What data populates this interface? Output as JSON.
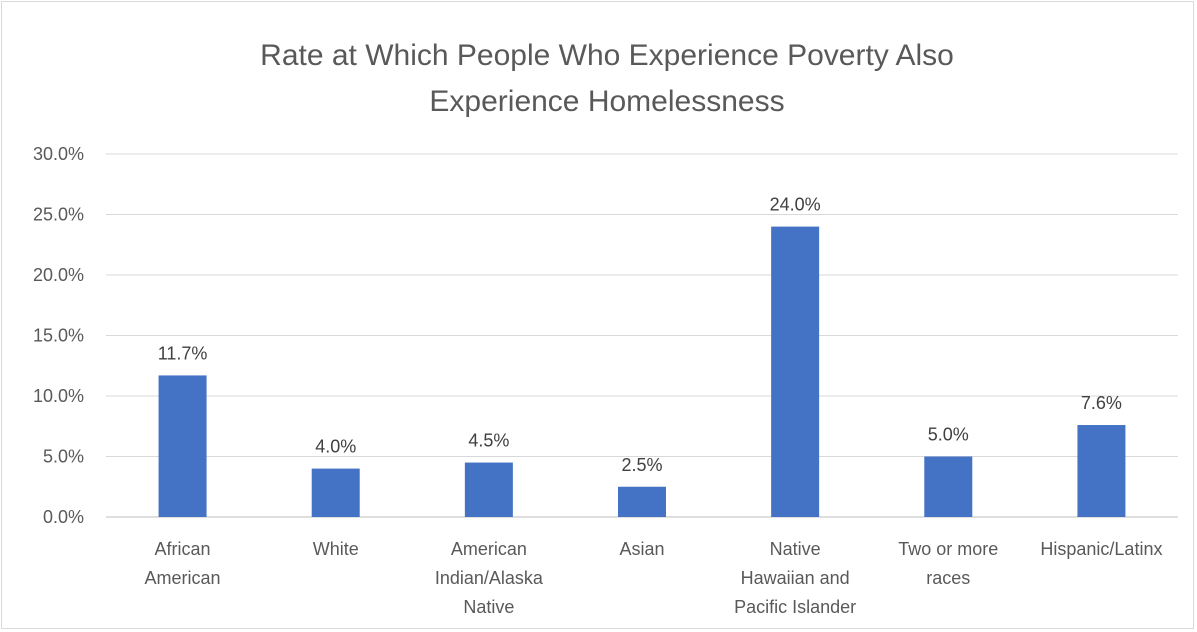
{
  "chart_data": {
    "type": "bar",
    "title_lines": [
      "Rate at Which People Who Experience Poverty Also",
      "Experience Homelessness"
    ],
    "categories": [
      [
        "African",
        "American"
      ],
      [
        "White"
      ],
      [
        "American",
        "Indian/Alaska",
        "Native"
      ],
      [
        "Asian"
      ],
      [
        "Native",
        "Hawaiian and",
        "Pacific Islander"
      ],
      [
        "Two or more",
        "races"
      ],
      [
        "Hispanic/Latinx"
      ]
    ],
    "values": [
      11.7,
      4.0,
      4.5,
      2.5,
      24.0,
      5.0,
      7.6
    ],
    "data_labels": [
      "11.7%",
      "4.0%",
      "4.5%",
      "2.5%",
      "24.0%",
      "5.0%",
      "7.6%"
    ],
    "y_ticks": [
      0,
      5,
      10,
      15,
      20,
      25,
      30
    ],
    "y_tick_labels": [
      "0.0%",
      "5.0%",
      "10.0%",
      "15.0%",
      "20.0%",
      "25.0%",
      "30.0%"
    ],
    "ylim": [
      0,
      30
    ],
    "grid": true,
    "legend": "none",
    "bar_color": "#4472c4"
  }
}
